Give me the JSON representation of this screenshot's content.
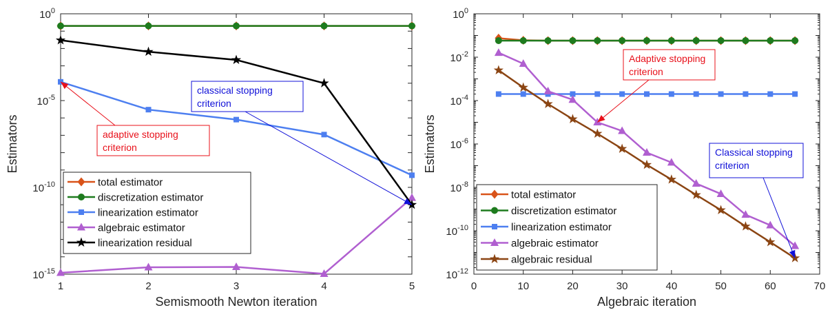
{
  "chart_data": [
    {
      "type": "line",
      "xlabel": "Semismooth Newton iteration",
      "ylabel": "Estimators",
      "yscale": "log",
      "xlim": [
        1,
        5
      ],
      "ylim": [
        1e-15,
        1
      ],
      "xticks": [
        1,
        2,
        3,
        4,
        5
      ],
      "yticks": [
        {
          "value": 1,
          "base": "10",
          "exp": "0"
        },
        {
          "value": 1e-05,
          "base": "10",
          "exp": "-5"
        },
        {
          "value": 1e-10,
          "base": "10",
          "exp": "-10"
        },
        {
          "value": 1e-15,
          "base": "10",
          "exp": "-15"
        }
      ],
      "legend_position": "bottom-left",
      "series": [
        {
          "name": "total estimator",
          "color": "#d95319",
          "marker": "diamond",
          "x": [
            1,
            2,
            3,
            4,
            5
          ],
          "y": [
            0.2,
            0.2,
            0.2,
            0.2,
            0.2
          ]
        },
        {
          "name": "discretization estimator",
          "color": "#1e7b1e",
          "marker": "circle",
          "x": [
            1,
            2,
            3,
            4,
            5
          ],
          "y": [
            0.2,
            0.2,
            0.2,
            0.2,
            0.2
          ]
        },
        {
          "name": "linearization estimator",
          "color": "#4d7ff0",
          "marker": "square",
          "x": [
            1,
            2,
            3,
            4,
            5
          ],
          "y": [
            0.00012,
            3e-06,
            8e-07,
            1.1e-07,
            5e-10
          ]
        },
        {
          "name": "algebraic estimator",
          "color": "#b05fd0",
          "marker": "triangle",
          "x": [
            1,
            2,
            3,
            4,
            5
          ],
          "y": [
            1.2e-15,
            2.5e-15,
            2.6e-15,
            1.05e-15,
            2.5e-11
          ]
        },
        {
          "name": "linearization residual",
          "color": "#000000",
          "marker": "star",
          "x": [
            1,
            2,
            3,
            4,
            5
          ],
          "y": [
            0.03,
            0.0065,
            0.0022,
            0.0001,
            1e-11
          ]
        }
      ],
      "annotations": [
        {
          "text": [
            "adaptive stopping",
            "criterion"
          ],
          "color": "#e8101a",
          "target_x": 1,
          "target_y": 0.00012
        },
        {
          "text": [
            "classical stopping",
            "criterion"
          ],
          "color": "#1010d8",
          "target_x": 5,
          "target_y": 1e-11
        }
      ]
    },
    {
      "type": "line",
      "xlabel": "Algebraic iteration",
      "ylabel": "Estimators",
      "yscale": "log",
      "xlim": [
        0,
        70
      ],
      "ylim": [
        1e-12,
        1
      ],
      "xticks": [
        0,
        10,
        20,
        30,
        40,
        50,
        60,
        70
      ],
      "yticks": [
        {
          "value": 1,
          "base": "10",
          "exp": "0"
        },
        {
          "value": 0.01,
          "base": "10",
          "exp": "-2"
        },
        {
          "value": 0.0001,
          "base": "10",
          "exp": "-4"
        },
        {
          "value": 1e-06,
          "base": "10",
          "exp": "-6"
        },
        {
          "value": 1e-08,
          "base": "10",
          "exp": "-8"
        },
        {
          "value": 1e-10,
          "base": "10",
          "exp": "-10"
        },
        {
          "value": 1e-12,
          "base": "10",
          "exp": "-12"
        }
      ],
      "legend_position": "bottom-left",
      "series": [
        {
          "name": "total estimator",
          "color": "#d95319",
          "marker": "diamond",
          "x": [
            5,
            10,
            15,
            20,
            25,
            30,
            35,
            40,
            45,
            50,
            55,
            60,
            65
          ],
          "y": [
            0.075,
            0.06,
            0.058,
            0.058,
            0.058,
            0.058,
            0.058,
            0.058,
            0.058,
            0.058,
            0.058,
            0.058,
            0.058
          ]
        },
        {
          "name": "discretization estimator",
          "color": "#1e7b1e",
          "marker": "circle",
          "x": [
            5,
            10,
            15,
            20,
            25,
            30,
            35,
            40,
            45,
            50,
            55,
            60,
            65
          ],
          "y": [
            0.058,
            0.058,
            0.058,
            0.058,
            0.058,
            0.058,
            0.058,
            0.058,
            0.058,
            0.058,
            0.058,
            0.058,
            0.058
          ]
        },
        {
          "name": "linearization estimator",
          "color": "#4d7ff0",
          "marker": "square",
          "x": [
            5,
            10,
            15,
            20,
            25,
            30,
            35,
            40,
            45,
            50,
            55,
            60,
            65
          ],
          "y": [
            0.0002,
            0.0002,
            0.0002,
            0.0002,
            0.0002,
            0.0002,
            0.0002,
            0.0002,
            0.0002,
            0.0002,
            0.0002,
            0.0002,
            0.0002
          ]
        },
        {
          "name": "algebraic estimator",
          "color": "#b05fd0",
          "marker": "triangle",
          "x": [
            5,
            10,
            15,
            20,
            25,
            30,
            35,
            40,
            45,
            50,
            55,
            60,
            65
          ],
          "y": [
            0.016,
            0.005,
            0.00027,
            0.00011,
            1e-05,
            4e-06,
            4e-07,
            1.4e-07,
            1.5e-08,
            5e-09,
            5.5e-10,
            1.8e-10,
            2e-11
          ]
        },
        {
          "name": "algebraic residual",
          "color": "#8b4513",
          "marker": "star",
          "x": [
            5,
            10,
            15,
            20,
            25,
            30,
            35,
            40,
            45,
            50,
            55,
            60,
            65
          ],
          "y": [
            0.0025,
            0.0004,
            7e-05,
            1.4e-05,
            3e-06,
            6e-07,
            1.1e-07,
            2.3e-08,
            4.5e-09,
            9e-10,
            1.6e-10,
            3e-11,
            5.5e-12
          ]
        }
      ],
      "annotations": [
        {
          "text": [
            "Adaptive stopping",
            "criterion"
          ],
          "color": "#e8101a",
          "target_x": 25,
          "target_y": 1e-05
        },
        {
          "text": [
            "Classical stopping",
            "criterion"
          ],
          "color": "#1010d8",
          "target_x": 65,
          "target_y": 5.5e-12
        }
      ]
    }
  ]
}
